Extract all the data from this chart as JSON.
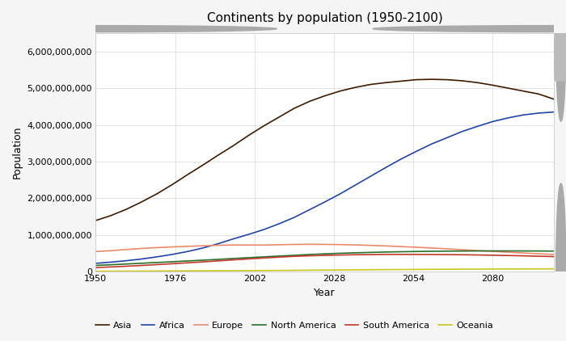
{
  "title": "Continents by population (1950-2100)",
  "xlabel": "Year",
  "ylabel": "Population",
  "years": [
    1950,
    1955,
    1960,
    1965,
    1970,
    1975,
    1980,
    1985,
    1990,
    1995,
    2000,
    2005,
    2010,
    2015,
    2020,
    2025,
    2030,
    2035,
    2040,
    2045,
    2050,
    2055,
    2060,
    2065,
    2070,
    2075,
    2080,
    2085,
    2090,
    2095,
    2100
  ],
  "Asia": [
    1395000000,
    1530000000,
    1700000000,
    1900000000,
    2120000000,
    2370000000,
    2640000000,
    2900000000,
    3170000000,
    3430000000,
    3710000000,
    3970000000,
    4210000000,
    4450000000,
    4640000000,
    4790000000,
    4920000000,
    5020000000,
    5100000000,
    5150000000,
    5190000000,
    5230000000,
    5240000000,
    5230000000,
    5200000000,
    5150000000,
    5080000000,
    5000000000,
    4920000000,
    4840000000,
    4700000000
  ],
  "Africa": [
    229000000,
    262000000,
    300000000,
    347000000,
    405000000,
    471000000,
    550000000,
    645000000,
    762000000,
    893000000,
    1016000000,
    1148000000,
    1305000000,
    1480000000,
    1690000000,
    1900000000,
    2120000000,
    2360000000,
    2600000000,
    2840000000,
    3070000000,
    3280000000,
    3480000000,
    3650000000,
    3820000000,
    3960000000,
    4090000000,
    4190000000,
    4270000000,
    4320000000,
    4350000000
  ],
  "Europe": [
    549000000,
    575000000,
    605000000,
    634000000,
    657000000,
    676000000,
    693000000,
    706000000,
    721000000,
    728000000,
    727000000,
    726000000,
    736000000,
    744000000,
    748000000,
    745000000,
    739000000,
    730000000,
    718000000,
    703000000,
    686000000,
    667000000,
    646000000,
    623000000,
    600000000,
    577000000,
    555000000,
    532000000,
    510000000,
    490000000,
    470000000
  ],
  "NorthAmerica": [
    172000000,
    191000000,
    211000000,
    231000000,
    252000000,
    272000000,
    294000000,
    314000000,
    337000000,
    360000000,
    383000000,
    405000000,
    427000000,
    448000000,
    469000000,
    487000000,
    503000000,
    516000000,
    527000000,
    537000000,
    545000000,
    551000000,
    557000000,
    561000000,
    564000000,
    566000000,
    567000000,
    567000000,
    566000000,
    565000000,
    563000000
  ],
  "SouthAmerica": [
    114000000,
    131000000,
    150000000,
    171000000,
    194000000,
    218000000,
    243000000,
    268000000,
    296000000,
    323000000,
    349000000,
    374000000,
    398000000,
    420000000,
    434000000,
    446000000,
    456000000,
    463000000,
    468000000,
    471000000,
    472000000,
    472000000,
    470000000,
    467000000,
    463000000,
    457000000,
    450000000,
    442000000,
    433000000,
    423000000,
    413000000
  ],
  "Oceania": [
    13000000,
    15000000,
    16000000,
    18000000,
    20000000,
    22000000,
    23000000,
    25000000,
    27000000,
    29000000,
    31000000,
    33000000,
    36000000,
    39000000,
    43000000,
    46000000,
    49000000,
    52000000,
    55000000,
    58000000,
    61000000,
    63000000,
    66000000,
    68000000,
    70000000,
    72000000,
    74000000,
    76000000,
    77000000,
    78000000,
    79000000
  ],
  "colors": {
    "Asia": "#3d1c02",
    "Africa": "#2244aa",
    "Europe": "#e8896a",
    "NorthAmerica": "#2a6e2a",
    "SouthAmerica": "#c0392b",
    "Oceania": "#c8c820"
  },
  "legend_marker_colors": {
    "Asia": "#3d1c02",
    "Africa": "#2244aa",
    "Europe": "#e8896a",
    "NorthAmerica": "#2a6e2a",
    "SouthAmerica": "#c0392b",
    "Oceania": "#c8c820"
  },
  "ylim": [
    0,
    6500000000
  ],
  "yticks": [
    0,
    1000000000,
    2000000000,
    3000000000,
    4000000000,
    5000000000,
    6000000000
  ],
  "xticks": [
    1950,
    1976,
    2002,
    2028,
    2054,
    2080
  ],
  "xlim": [
    1950,
    2100
  ],
  "fig_bg": "#f5f5f5",
  "plot_bg": "#ffffff",
  "grid_color": "#d8d8d8",
  "scrollbar_color": "#c8c8c8",
  "linewidth": 1.2
}
